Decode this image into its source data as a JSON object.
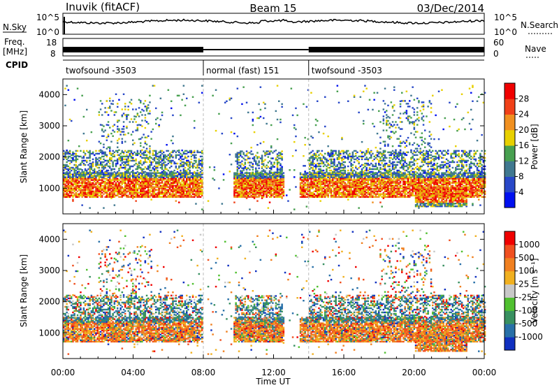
{
  "header": {
    "station": "Inuvik (fitACF)",
    "beam": "Beam 15",
    "date": "03/Dec/2014"
  },
  "strips": {
    "nsky_label": "N.Sky",
    "nsky_ticks": [
      "10^5",
      "10^0"
    ],
    "nsearch_label": "N.Search",
    "nsearch_ticks": [
      "10^5",
      "10^0"
    ],
    "freq_label_line1": "Freq.",
    "freq_label_line2": "[MHz]",
    "freq_ticks": [
      "18",
      "8"
    ],
    "nave_label": "Nave",
    "nave_ticks": [
      "60",
      "0"
    ],
    "cpid_label": "CPID"
  },
  "modes": [
    {
      "label": "twofsound -3503",
      "start_hour": 0,
      "end_hour": 8
    },
    {
      "label": "normal (fast) 151",
      "start_hour": 8,
      "end_hour": 14
    },
    {
      "label": "twofsound -3503",
      "start_hour": 14,
      "end_hour": 24
    }
  ],
  "chart_data": [
    {
      "type": "heatmap",
      "panel": "power",
      "xlabel": "",
      "ylabel": "Slant Range [km]",
      "xlim": [
        0,
        24
      ],
      "ylim": [
        180,
        4500
      ],
      "yticks": [
        "1000",
        "2000",
        "3000",
        "4000"
      ],
      "colorbar": {
        "label": "Power [dB]",
        "ticks": [
          "4",
          "8",
          "12",
          "16",
          "20",
          "24",
          "28"
        ],
        "colors": [
          "#0010f0",
          "#2848c8",
          "#407890",
          "#48a050",
          "#e8d000",
          "#f09020",
          "#f04018",
          "#f00000"
        ]
      }
    },
    {
      "type": "heatmap",
      "panel": "velocity",
      "xlabel": "Time UT",
      "ylabel": "Slant Range [km]",
      "xlim": [
        0,
        24
      ],
      "ylim": [
        180,
        4500
      ],
      "xticks": [
        "00:00",
        "04:00",
        "08:00",
        "12:00",
        "16:00",
        "20:00",
        "00:00"
      ],
      "yticks": [
        "1000",
        "2000",
        "3000",
        "4000"
      ],
      "colorbar": {
        "label": "Velocity [m s⁻¹]",
        "ticks": [
          "1000",
          "500",
          "100",
          "25",
          "-25",
          "-100",
          "-500",
          "-1000"
        ],
        "colors": [
          "#1030c0",
          "#2870a8",
          "#389060",
          "#50c030",
          "#c8c8c8",
          "#f0b020",
          "#f08020",
          "#f05020",
          "#f00000"
        ]
      }
    }
  ]
}
